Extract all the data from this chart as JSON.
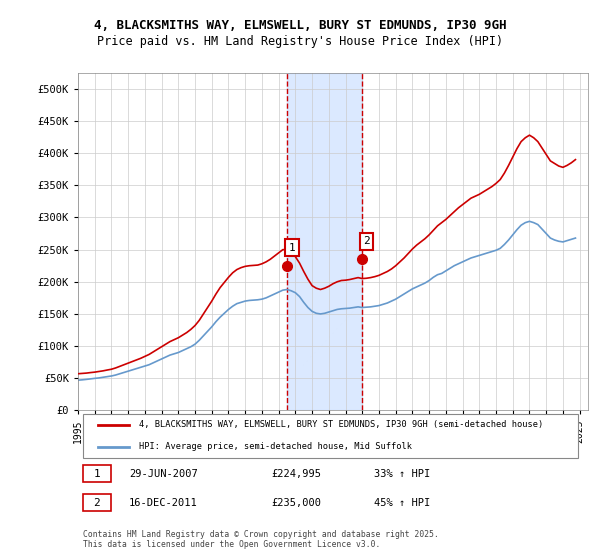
{
  "title_line1": "4, BLACKSMITHS WAY, ELMSWELL, BURY ST EDMUNDS, IP30 9GH",
  "title_line2": "Price paid vs. HM Land Registry's House Price Index (HPI)",
  "ylabel": "",
  "xlim_start": 1995.0,
  "xlim_end": 2025.5,
  "ylim_min": 0,
  "ylim_max": 525000,
  "yticks": [
    0,
    50000,
    100000,
    150000,
    200000,
    250000,
    300000,
    350000,
    400000,
    450000,
    500000
  ],
  "ytick_labels": [
    "£0",
    "£50K",
    "£100K",
    "£150K",
    "£200K",
    "£250K",
    "£300K",
    "£350K",
    "£400K",
    "£450K",
    "£500K"
  ],
  "xtick_years": [
    1995,
    1996,
    1997,
    1998,
    1999,
    2000,
    2001,
    2002,
    2003,
    2004,
    2005,
    2006,
    2007,
    2008,
    2009,
    2010,
    2011,
    2012,
    2013,
    2014,
    2015,
    2016,
    2017,
    2018,
    2019,
    2020,
    2021,
    2022,
    2023,
    2024,
    2025
  ],
  "sale1_x": 2007.49,
  "sale1_y": 224995,
  "sale1_label": "1",
  "sale2_x": 2011.96,
  "sale2_y": 235000,
  "sale2_label": "2",
  "shade_x1": 2007.49,
  "shade_x2": 2011.96,
  "line_color_property": "#cc0000",
  "line_color_hpi": "#6699cc",
  "marker_color": "#cc0000",
  "shade_color": "#cce0ff",
  "grid_color": "#cccccc",
  "bg_color": "#ffffff",
  "legend_label_property": "4, BLACKSMITHS WAY, ELMSWELL, BURY ST EDMUNDS, IP30 9GH (semi-detached house)",
  "legend_label_hpi": "HPI: Average price, semi-detached house, Mid Suffolk",
  "table_row1": [
    "1",
    "29-JUN-2007",
    "£224,995",
    "33% ↑ HPI"
  ],
  "table_row2": [
    "2",
    "16-DEC-2011",
    "£235,000",
    "45% ↑ HPI"
  ],
  "footer": "Contains HM Land Registry data © Crown copyright and database right 2025.\nThis data is licensed under the Open Government Licence v3.0.",
  "hpi_data_x": [
    1995.0,
    1995.25,
    1995.5,
    1995.75,
    1996.0,
    1996.25,
    1996.5,
    1996.75,
    1997.0,
    1997.25,
    1997.5,
    1997.75,
    1998.0,
    1998.25,
    1998.5,
    1998.75,
    1999.0,
    1999.25,
    1999.5,
    1999.75,
    2000.0,
    2000.25,
    2000.5,
    2000.75,
    2001.0,
    2001.25,
    2001.5,
    2001.75,
    2002.0,
    2002.25,
    2002.5,
    2002.75,
    2003.0,
    2003.25,
    2003.5,
    2003.75,
    2004.0,
    2004.25,
    2004.5,
    2004.75,
    2005.0,
    2005.25,
    2005.5,
    2005.75,
    2006.0,
    2006.25,
    2006.5,
    2006.75,
    2007.0,
    2007.25,
    2007.5,
    2007.75,
    2008.0,
    2008.25,
    2008.5,
    2008.75,
    2009.0,
    2009.25,
    2009.5,
    2009.75,
    2010.0,
    2010.25,
    2010.5,
    2010.75,
    2011.0,
    2011.25,
    2011.5,
    2011.75,
    2012.0,
    2012.25,
    2012.5,
    2012.75,
    2013.0,
    2013.25,
    2013.5,
    2013.75,
    2014.0,
    2014.25,
    2014.5,
    2014.75,
    2015.0,
    2015.25,
    2015.5,
    2015.75,
    2016.0,
    2016.25,
    2016.5,
    2016.75,
    2017.0,
    2017.25,
    2017.5,
    2017.75,
    2018.0,
    2018.25,
    2018.5,
    2018.75,
    2019.0,
    2019.25,
    2019.5,
    2019.75,
    2020.0,
    2020.25,
    2020.5,
    2020.75,
    2021.0,
    2021.25,
    2021.5,
    2021.75,
    2022.0,
    2022.25,
    2022.5,
    2022.75,
    2023.0,
    2023.25,
    2023.5,
    2023.75,
    2024.0,
    2024.25,
    2024.5,
    2024.75
  ],
  "hpi_data_y": [
    47000,
    47500,
    48200,
    49000,
    49800,
    50500,
    51500,
    52500,
    53500,
    55000,
    57000,
    59000,
    61000,
    63000,
    65000,
    67000,
    69000,
    71000,
    74000,
    77000,
    80000,
    83000,
    86000,
    88000,
    90000,
    93000,
    96000,
    99000,
    103000,
    109000,
    116000,
    123000,
    130000,
    138000,
    145000,
    151000,
    157000,
    162000,
    166000,
    168000,
    170000,
    171000,
    171500,
    172000,
    173000,
    175000,
    178000,
    181000,
    184000,
    187000,
    188000,
    186000,
    183000,
    177000,
    168000,
    160000,
    154000,
    151000,
    150000,
    151000,
    153000,
    155000,
    157000,
    158000,
    158500,
    159000,
    160000,
    161000,
    160000,
    160500,
    161000,
    162000,
    163000,
    165000,
    167000,
    170000,
    173000,
    177000,
    181000,
    185000,
    189000,
    192000,
    195000,
    198000,
    202000,
    207000,
    211000,
    213000,
    217000,
    221000,
    225000,
    228000,
    231000,
    234000,
    237000,
    239000,
    241000,
    243000,
    245000,
    247000,
    249000,
    252000,
    258000,
    265000,
    273000,
    281000,
    288000,
    292000,
    294000,
    292000,
    289000,
    282000,
    275000,
    268000,
    265000,
    263000,
    262000,
    264000,
    266000,
    268000
  ],
  "prop_data_x": [
    1995.0,
    1995.25,
    1995.5,
    1995.75,
    1996.0,
    1996.25,
    1996.5,
    1996.75,
    1997.0,
    1997.25,
    1997.5,
    1997.75,
    1998.0,
    1998.25,
    1998.5,
    1998.75,
    1999.0,
    1999.25,
    1999.5,
    1999.75,
    2000.0,
    2000.25,
    2000.5,
    2000.75,
    2001.0,
    2001.25,
    2001.5,
    2001.75,
    2002.0,
    2002.25,
    2002.5,
    2002.75,
    2003.0,
    2003.25,
    2003.5,
    2003.75,
    2004.0,
    2004.25,
    2004.5,
    2004.75,
    2005.0,
    2005.25,
    2005.5,
    2005.75,
    2006.0,
    2006.25,
    2006.5,
    2006.75,
    2007.0,
    2007.25,
    2007.5,
    2007.75,
    2008.0,
    2008.25,
    2008.5,
    2008.75,
    2009.0,
    2009.25,
    2009.5,
    2009.75,
    2010.0,
    2010.25,
    2010.5,
    2010.75,
    2011.0,
    2011.25,
    2011.5,
    2011.75,
    2012.0,
    2012.25,
    2012.5,
    2012.75,
    2013.0,
    2013.25,
    2013.5,
    2013.75,
    2014.0,
    2014.25,
    2014.5,
    2014.75,
    2015.0,
    2015.25,
    2015.5,
    2015.75,
    2016.0,
    2016.25,
    2016.5,
    2016.75,
    2017.0,
    2017.25,
    2017.5,
    2017.75,
    2018.0,
    2018.25,
    2018.5,
    2018.75,
    2019.0,
    2019.25,
    2019.5,
    2019.75,
    2020.0,
    2020.25,
    2020.5,
    2020.75,
    2021.0,
    2021.25,
    2021.5,
    2021.75,
    2022.0,
    2022.25,
    2022.5,
    2022.75,
    2023.0,
    2023.25,
    2023.5,
    2023.75,
    2024.0,
    2024.25,
    2024.5,
    2024.75
  ],
  "prop_data_y": [
    57000,
    57500,
    58000,
    58800,
    59500,
    60500,
    61500,
    62800,
    64000,
    66000,
    68500,
    71000,
    73500,
    76000,
    78500,
    81000,
    84000,
    87000,
    91000,
    95000,
    99000,
    103000,
    107000,
    110000,
    113000,
    117000,
    121000,
    126000,
    132000,
    140000,
    150000,
    160000,
    170000,
    181000,
    191000,
    199000,
    207000,
    214000,
    219000,
    222000,
    224000,
    225000,
    225500,
    226000,
    228000,
    231000,
    235000,
    240000,
    245000,
    250000,
    250000,
    246000,
    239000,
    229000,
    216000,
    204000,
    194000,
    190000,
    188000,
    190000,
    193000,
    197000,
    200000,
    202000,
    202500,
    203500,
    205000,
    206500,
    205000,
    205500,
    206500,
    208000,
    210000,
    213000,
    216000,
    220000,
    225000,
    231000,
    237000,
    244000,
    251000,
    257000,
    262000,
    267000,
    273000,
    280000,
    287000,
    292000,
    297000,
    303000,
    309000,
    315000,
    320000,
    325000,
    330000,
    333000,
    336000,
    340000,
    344000,
    348000,
    353000,
    359000,
    369000,
    381000,
    394000,
    407000,
    418000,
    424000,
    428000,
    424000,
    418000,
    408000,
    398000,
    388000,
    384000,
    380000,
    378000,
    381000,
    385000,
    390000
  ]
}
